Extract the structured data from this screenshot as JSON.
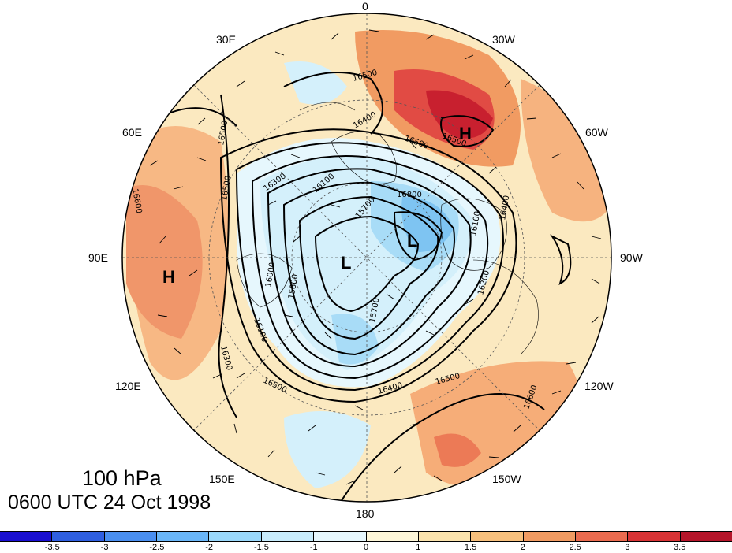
{
  "map": {
    "lon_labels": {
      "l0": "0",
      "l30e": "30E",
      "l30w": "30W",
      "l60e": "60E",
      "l60w": "60W",
      "l90e": "90E",
      "l90w": "90W",
      "l120e": "120E",
      "l120w": "120W",
      "l150e": "150E",
      "l150w": "150W",
      "l180": "180"
    },
    "contour_labels": [
      "16500",
      "16400",
      "16500",
      "16500",
      "16500",
      "16300",
      "16100",
      "16800",
      "15700",
      "16400",
      "16100",
      "16000",
      "15800",
      "16100",
      "15700",
      "16400",
      "16500",
      "16600",
      "16500",
      "16300",
      "16200",
      "16600",
      "16500"
    ],
    "pressure_centers": {
      "h_north": "H",
      "h_west": "H",
      "l_center": "L",
      "l_east": "L"
    }
  },
  "title": {
    "level": "100 hPa",
    "time": "0600 UTC 24 Oct 1998"
  },
  "colorbar": {
    "colors": [
      "#1a0fd0",
      "#2f5fe0",
      "#4a8ff0",
      "#6ab6f8",
      "#9ad8fb",
      "#c8ecfc",
      "#e6f7fd",
      "#fdf6d8",
      "#fbe3ad",
      "#f7c07d",
      "#f19b62",
      "#ea6b4f",
      "#d73335",
      "#b5152a"
    ],
    "ticks": [
      "-3.5",
      "-3",
      "-2.5",
      "-2",
      "-1.5",
      "-1",
      "0",
      "1",
      "1.5",
      "2",
      "2.5",
      "3",
      "3.5"
    ]
  }
}
